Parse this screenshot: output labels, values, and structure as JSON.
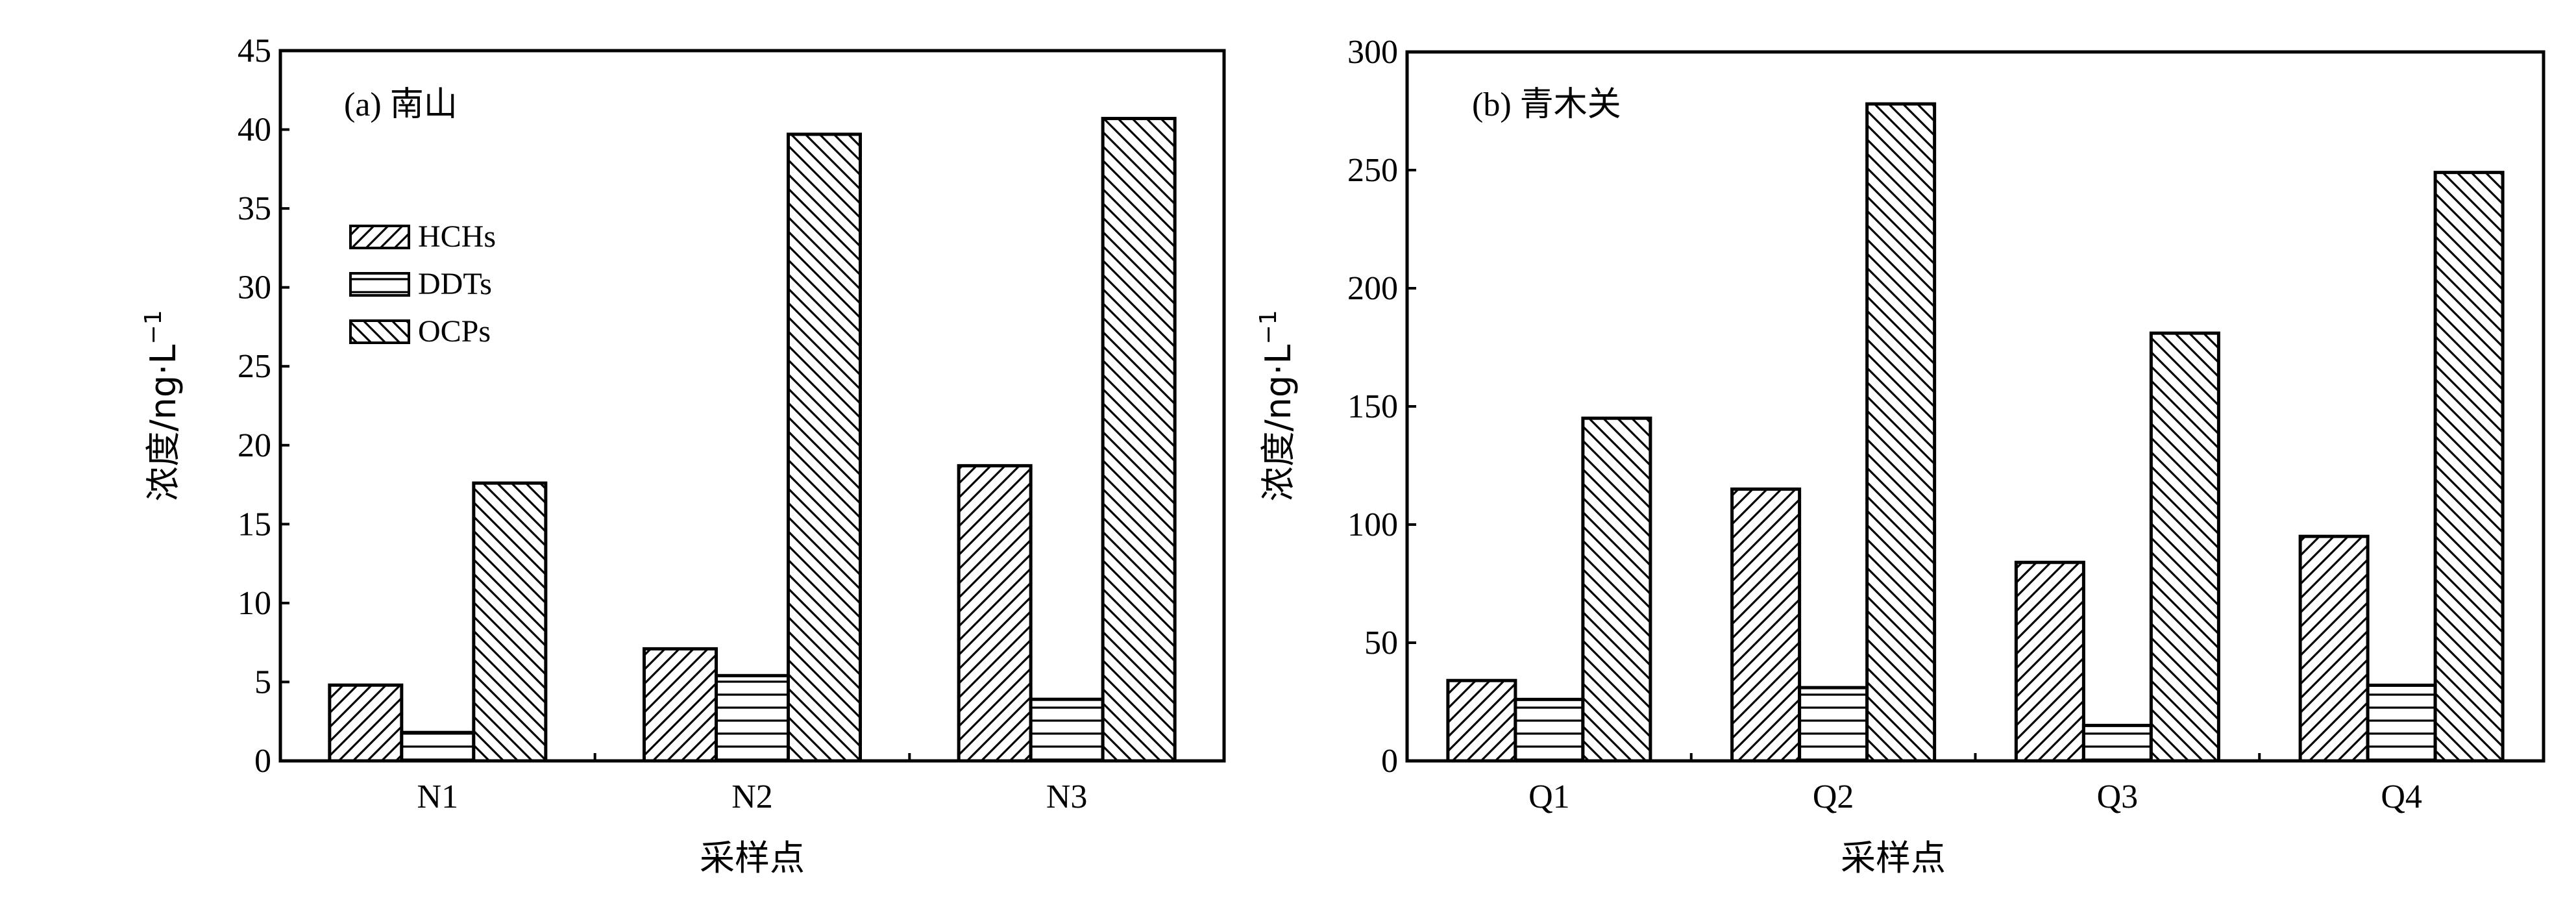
{
  "series_styles": [
    {
      "name": "HCHs",
      "pattern": "diag-up"
    },
    {
      "name": "DDTs",
      "pattern": "horiz"
    },
    {
      "name": "OCPs",
      "pattern": "diag-down"
    }
  ],
  "chart_data": [
    {
      "type": "bar",
      "panel_label": "(a) 南山",
      "xlabel": "采样点",
      "ylabel": "浓度/ng·L",
      "ylabel_sup": "−1",
      "categories": [
        "N1",
        "N2",
        "N3"
      ],
      "series": [
        {
          "name": "HCHs",
          "values": [
            4.8,
            7.1,
            18.7
          ]
        },
        {
          "name": "DDTs",
          "values": [
            1.8,
            5.4,
            3.9
          ]
        },
        {
          "name": "OCPs",
          "values": [
            17.6,
            39.7,
            40.7
          ]
        }
      ],
      "ylim": [
        0,
        45
      ],
      "yticks": [
        0,
        5,
        10,
        15,
        20,
        25,
        30,
        35,
        40,
        45
      ],
      "legend": {
        "placement": "upper-left",
        "entries": [
          "HCHs",
          "DDTs",
          "OCPs"
        ]
      },
      "grid": false
    },
    {
      "type": "bar",
      "panel_label": "(b) 青木关",
      "xlabel": "采样点",
      "ylabel": "浓度/ng·L",
      "ylabel_sup": "−1",
      "categories": [
        "Q1",
        "Q2",
        "Q3",
        "Q4"
      ],
      "series": [
        {
          "name": "HCHs",
          "values": [
            34,
            115,
            84,
            95
          ]
        },
        {
          "name": "DDTs",
          "values": [
            26,
            31,
            15,
            32
          ]
        },
        {
          "name": "OCPs",
          "values": [
            145,
            278,
            181,
            249
          ]
        }
      ],
      "ylim": [
        0,
        300
      ],
      "yticks": [
        0,
        50,
        100,
        150,
        200,
        250,
        300
      ],
      "grid": false
    }
  ]
}
